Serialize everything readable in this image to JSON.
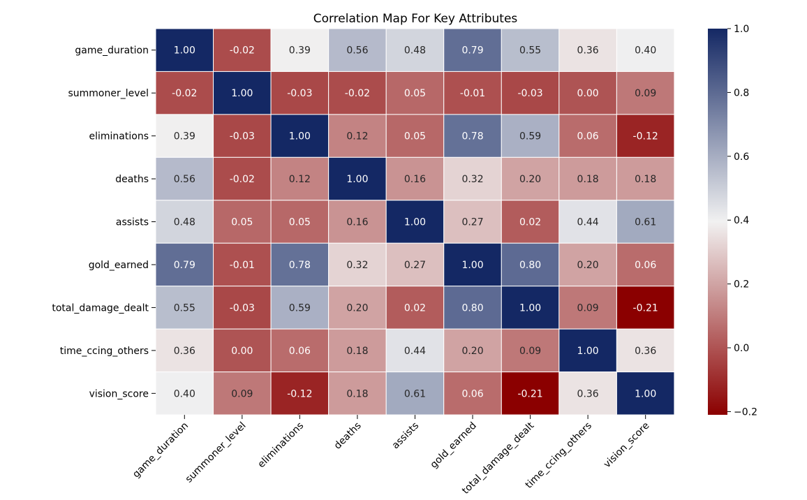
{
  "chart_data": {
    "type": "heatmap",
    "title": "Correlation Map For Key Attributes",
    "row_labels": [
      "game_duration",
      "summoner_level",
      "eliminations",
      "deaths",
      "assists",
      "gold_earned",
      "total_damage_dealt",
      "time_ccing_others",
      "vision_score"
    ],
    "col_labels": [
      "game_duration",
      "summoner_level",
      "eliminations",
      "deaths",
      "assists",
      "gold_earned",
      "total_damage_dealt",
      "time_ccing_others",
      "vision_score"
    ],
    "values": [
      [
        1.0,
        -0.02,
        0.39,
        0.56,
        0.48,
        0.79,
        0.55,
        0.36,
        0.4
      ],
      [
        -0.02,
        1.0,
        -0.03,
        -0.02,
        0.05,
        -0.01,
        -0.03,
        0.0,
        0.09
      ],
      [
        0.39,
        -0.03,
        1.0,
        0.12,
        0.05,
        0.78,
        0.59,
        0.06,
        -0.12
      ],
      [
        0.56,
        -0.02,
        0.12,
        1.0,
        0.16,
        0.32,
        0.2,
        0.18,
        0.18
      ],
      [
        0.48,
        0.05,
        0.05,
        0.16,
        1.0,
        0.27,
        0.02,
        0.44,
        0.61
      ],
      [
        0.79,
        -0.01,
        0.78,
        0.32,
        0.27,
        1.0,
        0.8,
        0.2,
        0.06
      ],
      [
        0.55,
        -0.03,
        0.59,
        0.2,
        0.02,
        0.8,
        1.0,
        0.09,
        -0.21
      ],
      [
        0.36,
        0.0,
        0.06,
        0.18,
        0.44,
        0.2,
        0.09,
        1.0,
        0.36
      ],
      [
        0.4,
        0.09,
        -0.12,
        0.18,
        0.61,
        0.06,
        -0.21,
        0.36,
        1.0
      ]
    ],
    "value_labels": [
      [
        "1.00",
        "-0.02",
        "0.39",
        "0.56",
        "0.48",
        "0.79",
        "0.55",
        "0.36",
        "0.40"
      ],
      [
        "-0.02",
        "1.00",
        "-0.03",
        "-0.02",
        "0.05",
        "-0.01",
        "-0.03",
        "0.00",
        "0.09"
      ],
      [
        "0.39",
        "-0.03",
        "1.00",
        "0.12",
        "0.05",
        "0.78",
        "0.59",
        "0.06",
        "-0.12"
      ],
      [
        "0.56",
        "-0.02",
        "0.12",
        "1.00",
        "0.16",
        "0.32",
        "0.20",
        "0.18",
        "0.18"
      ],
      [
        "0.48",
        "0.05",
        "0.05",
        "0.16",
        "1.00",
        "0.27",
        "0.02",
        "0.44",
        "0.61"
      ],
      [
        "0.79",
        "-0.01",
        "0.78",
        "0.32",
        "0.27",
        "1.00",
        "0.80",
        "0.20",
        "0.06"
      ],
      [
        "0.55",
        "-0.03",
        "0.59",
        "0.20",
        "0.02",
        "0.80",
        "1.00",
        "0.09",
        "-0.21"
      ],
      [
        "0.36",
        "0.00",
        "0.06",
        "0.18",
        "0.44",
        "0.20",
        "0.09",
        "1.00",
        "0.36"
      ],
      [
        "0.40",
        "0.09",
        "-0.12",
        "0.18",
        "0.61",
        "0.06",
        "-0.21",
        "0.36",
        "1.00"
      ]
    ],
    "colorbar": {
      "range": [
        -0.21,
        1.0
      ],
      "tick_values": [
        1.0,
        0.8,
        0.6,
        0.4,
        0.2,
        0.0,
        -0.2
      ],
      "tick_labels": [
        "1.0",
        "0.8",
        "0.6",
        "0.4",
        "0.2",
        "0.0",
        "−0.2"
      ]
    },
    "colormap": {
      "low": "#8b0000",
      "mid": "#f1f1f1",
      "high": "#142864"
    },
    "grid": true,
    "cell_separator_color": "#ffffff"
  }
}
